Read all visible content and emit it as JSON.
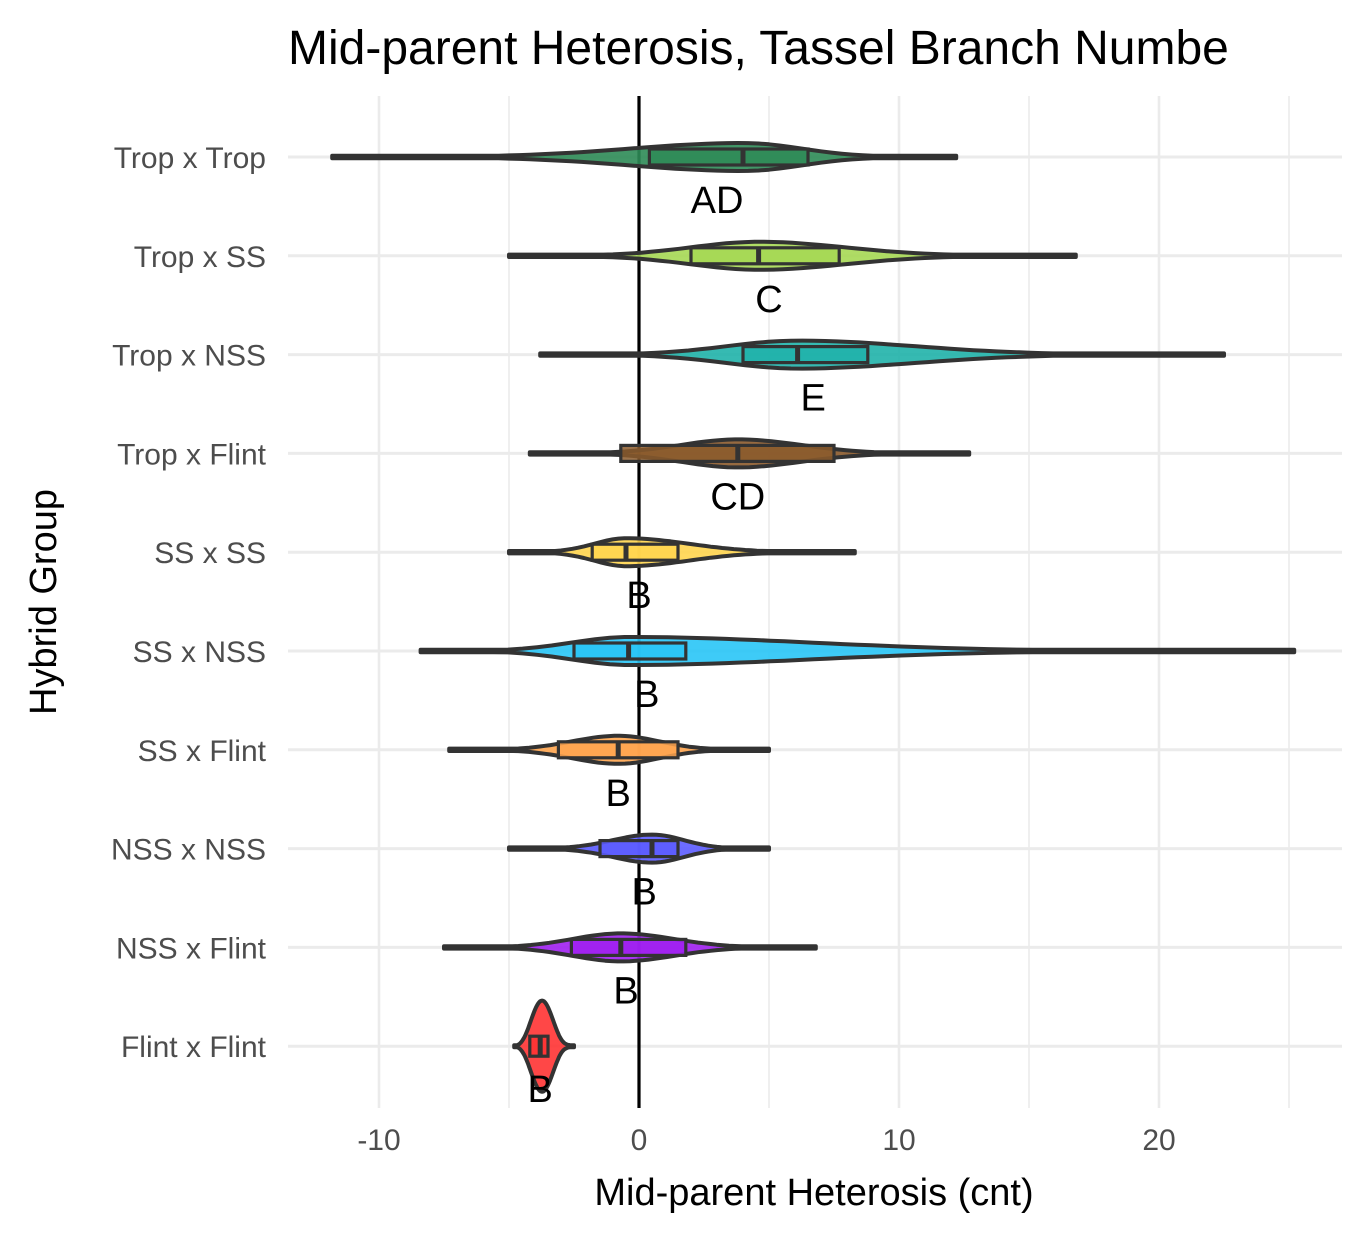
{
  "chart_data": {
    "type": "violin",
    "title": "Mid-parent Heterosis, Tassel Branch Numbe",
    "xlabel": "Mid-parent Heterosis (cnt)",
    "ylabel": "Hybrid Group",
    "xlim": [
      -13.5,
      27
    ],
    "x_ticks": [
      -10,
      0,
      10,
      20
    ],
    "x_tick_labels": [
      "-10",
      "0",
      "10",
      "20"
    ],
    "reference_line_x": 0,
    "grid": true,
    "legend": "none",
    "groups": [
      {
        "name": "Trop x Trop",
        "color": "#2e8b57",
        "min": -11.8,
        "q1": 0.4,
        "median": 4.0,
        "q3": 6.5,
        "max": 12.2,
        "letter": "AD",
        "letter_x": 3.0
      },
      {
        "name": "Trop x SS",
        "color": "#a6d854",
        "min": -5.0,
        "q1": 2.0,
        "median": 4.6,
        "q3": 7.7,
        "max": 16.8,
        "letter": "C",
        "letter_x": 5.0
      },
      {
        "name": "Trop x NSS",
        "color": "#20b2aa",
        "min": -3.8,
        "q1": 4.0,
        "median": 6.1,
        "q3": 8.8,
        "max": 22.5,
        "letter": "E",
        "letter_x": 6.7
      },
      {
        "name": "Trop x Flint",
        "color": "#8b5a2b",
        "min": -4.2,
        "q1": -0.7,
        "median": 3.8,
        "q3": 7.5,
        "max": 12.7,
        "letter": "CD",
        "letter_x": 3.8
      },
      {
        "name": "SS x SS",
        "color": "#ffd54f",
        "min": -5.0,
        "q1": -1.8,
        "median": -0.5,
        "q3": 1.5,
        "max": 8.3,
        "letter": "B",
        "letter_x": 0.0
      },
      {
        "name": "SS x NSS",
        "color": "#29c5f6",
        "min": -8.4,
        "q1": -2.5,
        "median": -0.4,
        "q3": 1.8,
        "max": 25.2,
        "letter": "B",
        "letter_x": 0.3
      },
      {
        "name": "SS x Flint",
        "color": "#ffa54f",
        "min": -7.3,
        "q1": -3.1,
        "median": -0.8,
        "q3": 1.5,
        "max": 5.0,
        "letter": "B",
        "letter_x": -0.8
      },
      {
        "name": "NSS x NSS",
        "color": "#5c5cff",
        "min": -5.0,
        "q1": -1.5,
        "median": 0.5,
        "q3": 1.5,
        "max": 5.0,
        "letter": "B",
        "letter_x": 0.2
      },
      {
        "name": "NSS x Flint",
        "color": "#a020f0",
        "min": -7.5,
        "q1": -2.6,
        "median": -0.7,
        "q3": 1.8,
        "max": 6.8,
        "letter": "B",
        "letter_x": -0.5
      },
      {
        "name": "Flint x Flint",
        "color": "#ff3333",
        "min": -4.8,
        "q1": -4.2,
        "median": -3.8,
        "q3": -3.5,
        "max": -2.5,
        "letter": "B",
        "letter_x": -3.8
      }
    ]
  }
}
